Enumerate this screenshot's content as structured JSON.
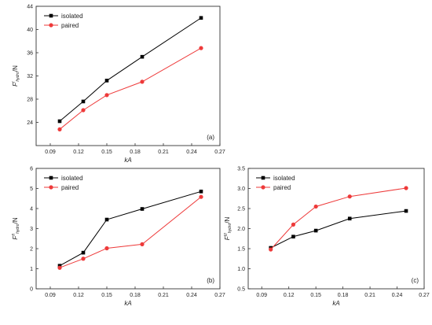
{
  "chart_data": [
    {
      "type": "line",
      "panel_label": "(a)",
      "xlabel": "kA",
      "ylabel_base": "F",
      "ylabel_sup": "I",
      "ylabel_sub": "hydro",
      "ylabel_unit": "/N",
      "xlim": [
        0.075,
        0.27
      ],
      "ylim": [
        20,
        44
      ],
      "xticks": [
        0.09,
        0.12,
        0.15,
        0.18,
        0.21,
        0.24,
        0.27
      ],
      "xtick_labels": [
        "0.09",
        "0.12",
        "0.15",
        "0.18",
        "0.21",
        "0.24",
        "0.27"
      ],
      "yticks": [
        24,
        28,
        32,
        36,
        40,
        44
      ],
      "ytick_labels": [
        "24",
        "28",
        "32",
        "36",
        "40",
        "44"
      ],
      "legend_position": "top-left",
      "grid": false,
      "series": [
        {
          "name": "isolated",
          "color": "#000000",
          "marker": "square",
          "x": [
            0.1,
            0.125,
            0.15,
            0.1875,
            0.25
          ],
          "y": [
            24.2,
            27.6,
            31.2,
            35.3,
            42.0
          ]
        },
        {
          "name": "paired",
          "color": "#ee3a3a",
          "marker": "circle",
          "x": [
            0.1,
            0.125,
            0.15,
            0.1875,
            0.25
          ],
          "y": [
            22.8,
            26.1,
            28.7,
            31.0,
            36.8
          ]
        }
      ]
    },
    {
      "type": "line",
      "panel_label": "(b)",
      "xlabel": "kA",
      "ylabel_base": "F",
      "ylabel_sup": "II",
      "ylabel_sub": "hydro",
      "ylabel_unit": "/N",
      "xlim": [
        0.075,
        0.27
      ],
      "ylim": [
        0,
        6
      ],
      "xticks": [
        0.09,
        0.12,
        0.15,
        0.18,
        0.21,
        0.24,
        0.27
      ],
      "xtick_labels": [
        "0.09",
        "0.12",
        "0.15",
        "0.18",
        "0.21",
        "0.24",
        "0.27"
      ],
      "yticks": [
        0,
        1,
        2,
        3,
        4,
        5,
        6
      ],
      "ytick_labels": [
        "0",
        "1",
        "2",
        "3",
        "4",
        "5",
        "6"
      ],
      "legend_position": "top-left",
      "grid": false,
      "series": [
        {
          "name": "isolated",
          "color": "#000000",
          "marker": "square",
          "x": [
            0.1,
            0.125,
            0.15,
            0.1875,
            0.25
          ],
          "y": [
            1.15,
            1.8,
            3.45,
            3.98,
            4.85
          ]
        },
        {
          "name": "paired",
          "color": "#ee3a3a",
          "marker": "circle",
          "x": [
            0.1,
            0.125,
            0.15,
            0.1875,
            0.25
          ],
          "y": [
            1.05,
            1.5,
            2.02,
            2.22,
            4.58
          ]
        }
      ]
    },
    {
      "type": "line",
      "panel_label": "(c)",
      "xlabel": "kA",
      "ylabel_base": "F",
      "ylabel_sup": "III",
      "ylabel_sub": "hydro",
      "ylabel_unit": "/N",
      "xlim": [
        0.075,
        0.27
      ],
      "ylim": [
        0.5,
        3.5
      ],
      "xticks": [
        0.09,
        0.12,
        0.15,
        0.18,
        0.21,
        0.24,
        0.27
      ],
      "xtick_labels": [
        "0.09",
        "0.12",
        "0.15",
        "0.18",
        "0.21",
        "0.24",
        "0.27"
      ],
      "yticks": [
        0.5,
        1.0,
        1.5,
        2.0,
        2.5,
        3.0,
        3.5
      ],
      "ytick_labels": [
        "0.5",
        "1.0",
        "1.5",
        "2.0",
        "2.5",
        "3.0",
        "3.5"
      ],
      "legend_position": "top-left",
      "grid": false,
      "series": [
        {
          "name": "isolated",
          "color": "#000000",
          "marker": "square",
          "x": [
            0.1,
            0.125,
            0.15,
            0.1875,
            0.25
          ],
          "y": [
            1.52,
            1.8,
            1.95,
            2.25,
            2.44
          ]
        },
        {
          "name": "paired",
          "color": "#ee3a3a",
          "marker": "circle",
          "x": [
            0.1,
            0.125,
            0.15,
            0.1875,
            0.25
          ],
          "y": [
            1.48,
            2.1,
            2.55,
            2.8,
            3.01
          ]
        }
      ]
    }
  ]
}
